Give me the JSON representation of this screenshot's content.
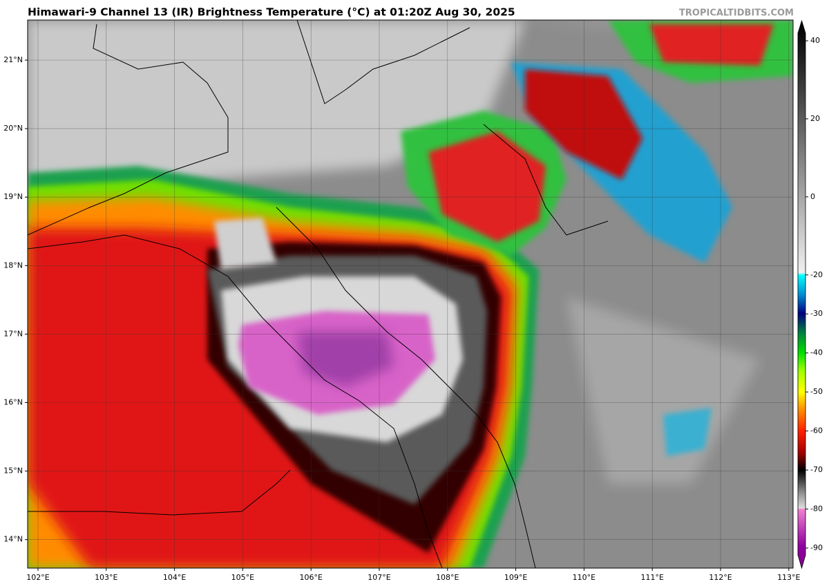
{
  "header": {
    "title": "Himawari-9 Channel 13 (IR) Brightness Temperature (°C) at 01:20Z Aug 30, 2025",
    "credit": "TROPICALTIDBITS.COM"
  },
  "map": {
    "lon_labels": [
      "102°E",
      "103°E",
      "104°E",
      "105°E",
      "106°E",
      "107°E",
      "108°E",
      "109°E",
      "110°E",
      "111°E",
      "112°E",
      "113°E"
    ],
    "lat_labels": [
      "21°N",
      "20°N",
      "19°N",
      "18°N",
      "17°N",
      "16°N",
      "15°N",
      "14°N"
    ]
  },
  "colorbar": {
    "range": [
      -90,
      40
    ],
    "ticks": [
      40,
      20,
      0,
      -20,
      -30,
      -40,
      -50,
      -60,
      -70,
      -80,
      -90
    ]
  }
}
